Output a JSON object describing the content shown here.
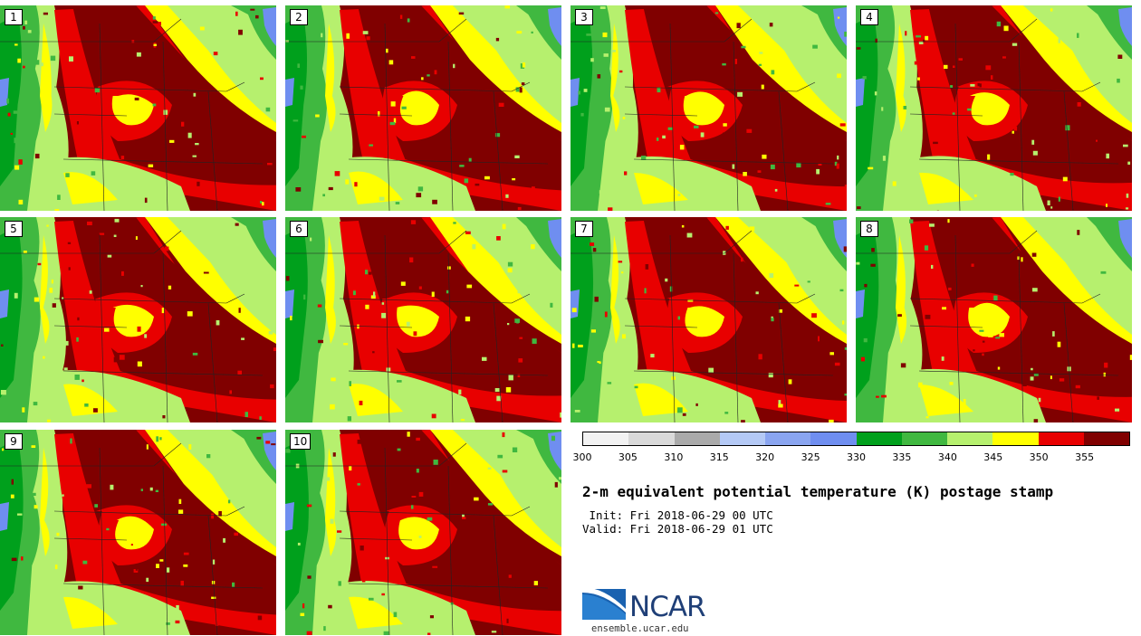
{
  "panels": [
    {
      "label": "1"
    },
    {
      "label": "2"
    },
    {
      "label": "3"
    },
    {
      "label": "4"
    },
    {
      "label": "5"
    },
    {
      "label": "6"
    },
    {
      "label": "7"
    },
    {
      "label": "8"
    },
    {
      "label": "9"
    },
    {
      "label": "10"
    }
  ],
  "legend": {
    "ticks": [
      "300",
      "305",
      "310",
      "315",
      "320",
      "325",
      "330",
      "335",
      "340",
      "345",
      "350",
      "355"
    ],
    "colors": [
      "#f2f2f2",
      "#d9d9d9",
      "#aaaaaa",
      "#b4c9f5",
      "#8aa5f0",
      "#6f8ef0",
      "#00a01c",
      "#40b840",
      "#b6f06e",
      "#ffff00",
      "#e80000",
      "#800000"
    ]
  },
  "title": "2-m equivalent potential temperature (K) postage stamp",
  "init": " Init: Fri 2018-06-29 00 UTC",
  "valid": "Valid: Fri 2018-06-29 01 UTC",
  "logo": {
    "name": "NCAR",
    "url": "ensemble.ucar.edu"
  }
}
